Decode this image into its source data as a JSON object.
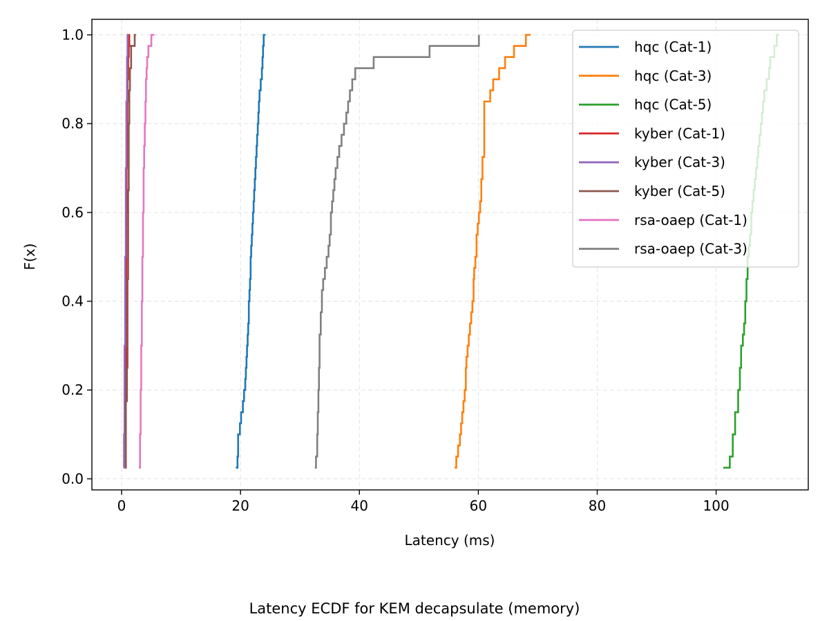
{
  "chart_data": {
    "type": "line",
    "step": true,
    "caption": "Latency ECDF for KEM decapsulate (memory)",
    "xlabel": "Latency (ms)",
    "ylabel": "F(x)",
    "xlim": [
      -5,
      115.5
    ],
    "ylim": [
      -0.025,
      1.035
    ],
    "xticks": [
      0,
      20,
      40,
      60,
      80,
      100
    ],
    "xtick_labels": [
      "0",
      "20",
      "40",
      "60",
      "80",
      "100"
    ],
    "yticks": [
      0.0,
      0.2,
      0.4,
      0.6,
      0.8,
      1.0
    ],
    "ytick_labels": [
      "0.0",
      "0.2",
      "0.4",
      "0.6",
      "0.8",
      "1.0"
    ],
    "grid": true,
    "legend_position": "upper right",
    "series": [
      {
        "name": "hqc (Cat-1)",
        "color": "#1f77b4",
        "x": [
          19.2,
          19.5,
          19.6,
          19.9,
          20.1,
          20.4,
          20.6,
          20.8,
          20.9,
          21.0,
          21.1,
          21.2,
          21.3,
          21.4,
          21.5,
          21.6,
          21.7,
          21.8,
          21.9,
          22.0,
          22.1,
          22.2,
          22.3,
          22.4,
          22.5,
          22.6,
          22.7,
          22.8,
          22.9,
          23.0,
          23.1,
          23.2,
          23.4,
          23.6,
          23.7,
          23.8,
          23.9,
          24.0,
          24.1,
          24.2
        ],
        "y": [
          0.025,
          0.05,
          0.1,
          0.125,
          0.15,
          0.175,
          0.2,
          0.225,
          0.25,
          0.275,
          0.3,
          0.325,
          0.35,
          0.4,
          0.425,
          0.45,
          0.5,
          0.525,
          0.55,
          0.575,
          0.6,
          0.625,
          0.65,
          0.675,
          0.7,
          0.725,
          0.75,
          0.775,
          0.8,
          0.825,
          0.85,
          0.875,
          0.9,
          0.925,
          0.95,
          0.975,
          1.0,
          1.0,
          1.0,
          1.0
        ]
      },
      {
        "name": "hqc (Cat-3)",
        "color": "#ff7f0e",
        "x": [
          56.0,
          56.3,
          56.6,
          56.9,
          57.1,
          57.3,
          57.5,
          57.7,
          57.9,
          58.0,
          58.2,
          58.4,
          58.6,
          58.8,
          59.0,
          59.2,
          59.3,
          59.5,
          59.7,
          59.9,
          60.1,
          60.3,
          60.5,
          60.7,
          61.0,
          61.5,
          62.0,
          62.5,
          63.0,
          63.5,
          64.0,
          64.5,
          65.0,
          66.0,
          67.0,
          68.0,
          68.8
        ],
        "y": [
          0.025,
          0.05,
          0.075,
          0.1,
          0.125,
          0.15,
          0.175,
          0.2,
          0.25,
          0.275,
          0.3,
          0.325,
          0.35,
          0.375,
          0.4,
          0.45,
          0.475,
          0.5,
          0.55,
          0.575,
          0.6,
          0.625,
          0.675,
          0.725,
          0.85,
          0.85,
          0.875,
          0.9,
          0.9,
          0.925,
          0.925,
          0.95,
          0.95,
          0.975,
          0.975,
          1.0,
          1.0
        ]
      },
      {
        "name": "hqc (Cat-5)",
        "color": "#2ca02c",
        "x": [
          101.2,
          102.3,
          102.8,
          103.2,
          103.7,
          104.0,
          104.2,
          104.5,
          104.7,
          104.9,
          105.1,
          105.3,
          105.5,
          105.7,
          105.9,
          106.1,
          106.3,
          106.5,
          106.7,
          106.9,
          107.1,
          107.3,
          107.5,
          107.7,
          107.9,
          108.1,
          108.3,
          108.5,
          108.7,
          108.9,
          109.1,
          109.4,
          109.8,
          110.2,
          110.6
        ],
        "y": [
          0.025,
          0.05,
          0.1,
          0.15,
          0.2,
          0.25,
          0.3,
          0.325,
          0.35,
          0.4,
          0.45,
          0.5,
          0.525,
          0.55,
          0.6,
          0.625,
          0.65,
          0.675,
          0.7,
          0.725,
          0.75,
          0.775,
          0.8,
          0.825,
          0.85,
          0.875,
          0.875,
          0.9,
          0.9,
          0.925,
          0.95,
          0.95,
          0.975,
          1.0,
          1.0
        ]
      },
      {
        "name": "kyber (Cat-1)",
        "color": "#d62728",
        "x": [
          0.6,
          0.7,
          0.75,
          0.8,
          0.85,
          0.9,
          0.95,
          1.0,
          1.1,
          1.2,
          1.3,
          1.4
        ],
        "y": [
          0.025,
          0.2,
          0.4,
          0.6,
          0.7,
          0.8,
          0.85,
          0.9,
          0.95,
          0.975,
          1.0,
          1.0
        ]
      },
      {
        "name": "kyber (Cat-3)",
        "color": "#9467bd",
        "x": [
          0.3,
          0.4,
          0.5,
          0.6,
          0.7,
          0.8,
          0.9,
          1.0,
          1.2
        ],
        "y": [
          0.025,
          0.1,
          0.3,
          0.5,
          0.7,
          0.85,
          0.95,
          1.0,
          1.0
        ]
      },
      {
        "name": "kyber (Cat-5)",
        "color": "#8c564b",
        "x": [
          0.6,
          0.7,
          0.9,
          1.0,
          1.1,
          1.2,
          1.3,
          1.4,
          1.6,
          2.2,
          2.4
        ],
        "y": [
          0.025,
          0.175,
          0.25,
          0.45,
          0.65,
          0.8,
          0.875,
          0.925,
          0.975,
          1.0,
          1.0
        ]
      },
      {
        "name": "rsa-oaep (Cat-1)",
        "color": "#e377c2",
        "x": [
          2.9,
          3.1,
          3.2,
          3.3,
          3.4,
          3.5,
          3.6,
          3.7,
          3.8,
          3.9,
          4.0,
          4.1,
          4.2,
          4.3,
          4.5,
          4.7,
          5.0,
          5.3,
          5.5
        ],
        "y": [
          0.025,
          0.1,
          0.2,
          0.3,
          0.4,
          0.5,
          0.6,
          0.7,
          0.75,
          0.8,
          0.85,
          0.9,
          0.925,
          0.95,
          0.975,
          0.975,
          1.0,
          1.0,
          1.0
        ]
      },
      {
        "name": "rsa-oaep (Cat-3)",
        "color": "#7f7f7f",
        "x": [
          32.5,
          32.7,
          32.9,
          33.0,
          33.1,
          33.2,
          33.3,
          33.5,
          33.7,
          33.9,
          34.2,
          34.5,
          34.8,
          35.0,
          35.2,
          35.4,
          35.6,
          35.8,
          36.0,
          36.3,
          36.6,
          37.0,
          37.4,
          37.8,
          38.1,
          38.4,
          38.8,
          39.3,
          42.4,
          51.8,
          60.1
        ],
        "y": [
          0.025,
          0.05,
          0.1,
          0.15,
          0.2,
          0.25,
          0.325,
          0.375,
          0.425,
          0.45,
          0.475,
          0.5,
          0.525,
          0.55,
          0.6,
          0.625,
          0.65,
          0.675,
          0.7,
          0.725,
          0.75,
          0.775,
          0.8,
          0.825,
          0.85,
          0.875,
          0.9,
          0.925,
          0.95,
          0.975,
          1.0
        ]
      }
    ]
  }
}
